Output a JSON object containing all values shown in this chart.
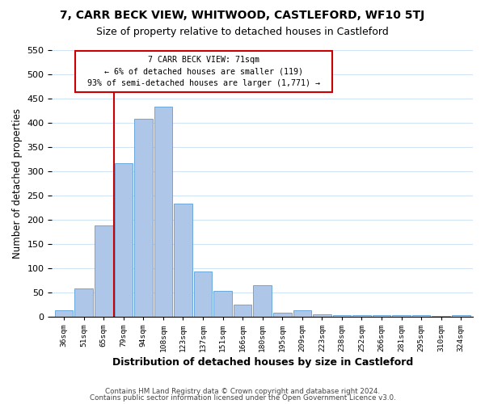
{
  "title": "7, CARR BECK VIEW, WHITWOOD, CASTLEFORD, WF10 5TJ",
  "subtitle": "Size of property relative to detached houses in Castleford",
  "xlabel": "Distribution of detached houses by size in Castleford",
  "ylabel": "Number of detached properties",
  "bin_labels": [
    "36sqm",
    "51sqm",
    "65sqm",
    "79sqm",
    "94sqm",
    "108sqm",
    "123sqm",
    "137sqm",
    "151sqm",
    "166sqm",
    "180sqm",
    "195sqm",
    "209sqm",
    "223sqm",
    "238sqm",
    "252sqm",
    "266sqm",
    "281sqm",
    "295sqm",
    "310sqm",
    "324sqm"
  ],
  "bar_heights": [
    12,
    58,
    188,
    316,
    408,
    432,
    232,
    92,
    52,
    24,
    65,
    8,
    12,
    5,
    3,
    3,
    2,
    2,
    2,
    1,
    2
  ],
  "bar_color": "#aec6e8",
  "bar_edge_color": "#5a9fd4",
  "highlight_line_color": "#cc0000",
  "highlight_box_text_line1": "7 CARR BECK VIEW: 71sqm",
  "highlight_box_text_line2": "← 6% of detached houses are smaller (119)",
  "highlight_box_text_line3": "93% of semi-detached houses are larger (1,771) →",
  "highlight_box_color": "#cc0000",
  "ylim": [
    0,
    550
  ],
  "yticks": [
    0,
    50,
    100,
    150,
    200,
    250,
    300,
    350,
    400,
    450,
    500,
    550
  ],
  "footer_line1": "Contains HM Land Registry data © Crown copyright and database right 2024.",
  "footer_line2": "Contains public sector information licensed under the Open Government Licence v3.0.",
  "background_color": "#ffffff",
  "grid_color": "#d0e4f5"
}
